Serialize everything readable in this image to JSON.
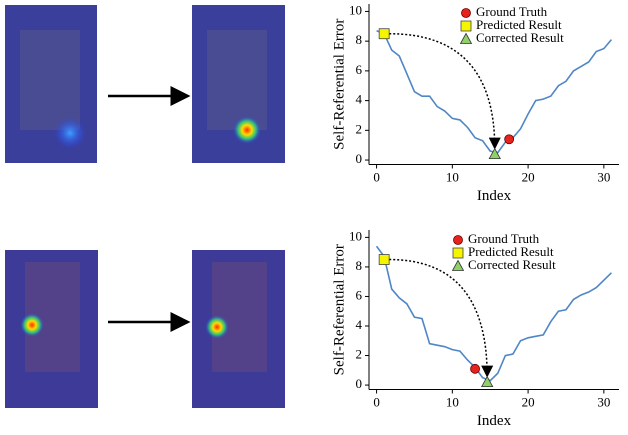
{
  "chart_data": [
    {
      "type": "line",
      "xlabel": "Index",
      "ylabel": "Self-Referential Error",
      "x": [
        0,
        1,
        2,
        3,
        4,
        5,
        6,
        7,
        8,
        9,
        10,
        11,
        12,
        13,
        14,
        15,
        16,
        17,
        18,
        19,
        20,
        21,
        22,
        23,
        24,
        25,
        26,
        27,
        28,
        29,
        30,
        31
      ],
      "series": [
        {
          "color": "#4f86c6",
          "values": [
            8.7,
            8.5,
            7.4,
            7.0,
            5.8,
            4.6,
            4.3,
            4.3,
            3.6,
            3.3,
            2.8,
            2.7,
            2.2,
            1.5,
            1.3,
            0.6,
            0.5,
            1.2,
            1.5,
            2.1,
            3.1,
            4.0,
            4.1,
            4.3,
            5.0,
            5.3,
            6.0,
            6.3,
            6.6,
            7.3,
            7.5,
            8.1
          ]
        }
      ],
      "markers": [
        {
          "name": "Ground Truth",
          "color": "#e8231e",
          "shape": "circle",
          "x": 17.5,
          "y": 1.4
        },
        {
          "name": "Predicted Result",
          "color": "#f5f500",
          "shape": "square",
          "x": 1,
          "y": 8.5
        },
        {
          "name": "Corrected Result",
          "color": "#8fd06a",
          "shape": "triangle",
          "x": 15.6,
          "y": 0.4
        }
      ],
      "xlim": [
        -1,
        32
      ],
      "ylim": [
        -0.3,
        10.5
      ],
      "xticks": [
        0,
        10,
        20,
        30
      ],
      "yticks": [
        0,
        2,
        4,
        6,
        8,
        10
      ]
    },
    {
      "type": "line",
      "xlabel": "Index",
      "ylabel": "Self-Referential Error",
      "x": [
        0,
        1,
        2,
        3,
        4,
        5,
        6,
        7,
        8,
        9,
        10,
        11,
        12,
        13,
        14,
        15,
        16,
        17,
        18,
        19,
        20,
        21,
        22,
        23,
        24,
        25,
        26,
        27,
        28,
        29,
        30,
        31
      ],
      "series": [
        {
          "color": "#4f86c6",
          "values": [
            9.4,
            8.7,
            6.5,
            5.9,
            5.5,
            4.6,
            4.5,
            2.8,
            2.7,
            2.6,
            2.4,
            2.3,
            1.7,
            1.2,
            0.5,
            0.3,
            0.8,
            2.0,
            2.1,
            3.0,
            3.2,
            3.3,
            3.4,
            4.3,
            5.0,
            5.1,
            5.8,
            6.1,
            6.3,
            6.6,
            7.1,
            7.6
          ]
        }
      ],
      "markers": [
        {
          "name": "Ground Truth",
          "color": "#e8231e",
          "shape": "circle",
          "x": 13,
          "y": 1.1
        },
        {
          "name": "Predicted Result",
          "color": "#f5f500",
          "shape": "square",
          "x": 1,
          "y": 8.5
        },
        {
          "name": "Corrected Result",
          "color": "#8fd06a",
          "shape": "triangle",
          "x": 14.6,
          "y": 0.2
        }
      ],
      "xlim": [
        -1,
        32
      ],
      "ylim": [
        -0.3,
        10.5
      ],
      "xticks": [
        0,
        10,
        20,
        30
      ],
      "yticks": [
        0,
        2,
        4,
        6,
        8,
        10
      ]
    }
  ]
}
